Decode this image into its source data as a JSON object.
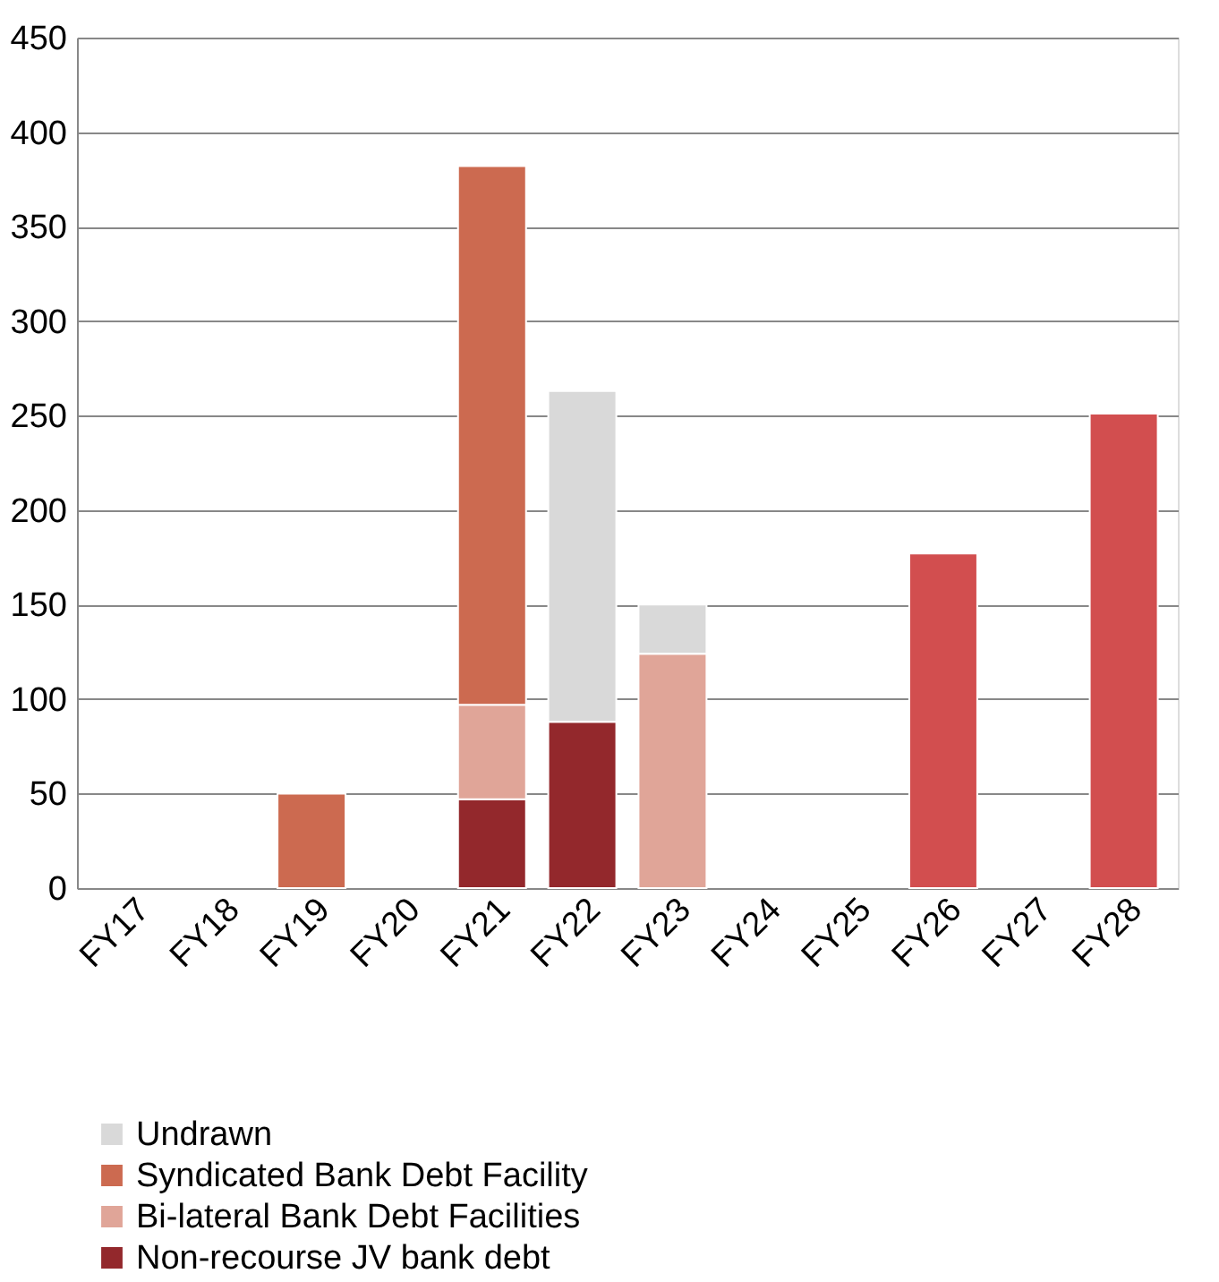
{
  "chart_data": {
    "type": "bar",
    "stacked": true,
    "categories": [
      "FY17",
      "FY18",
      "FY19",
      "FY20",
      "FY21",
      "FY22",
      "FY23",
      "FY24",
      "FY25",
      "FY26",
      "FY27",
      "FY28"
    ],
    "series": [
      {
        "name": "Non-recourse JV bank debt",
        "color": "#93282c",
        "values": [
          null,
          null,
          null,
          null,
          47,
          88,
          null,
          null,
          null,
          null,
          null,
          null
        ]
      },
      {
        "name": "Bi-lateral Bank Debt Facilities",
        "color": "#e0a598",
        "values": [
          null,
          null,
          null,
          null,
          50,
          null,
          124,
          null,
          null,
          null,
          null,
          null
        ]
      },
      {
        "name": "Syndicated Bank Debt Facility",
        "color": "#cc6a50",
        "values": [
          null,
          null,
          50,
          null,
          285,
          null,
          null,
          null,
          null,
          null,
          null,
          null
        ]
      },
      {
        "name": "Undrawn",
        "color": "#d9d9d9",
        "values": [
          null,
          null,
          null,
          null,
          null,
          175,
          26,
          null,
          null,
          null,
          null,
          null
        ]
      },
      {
        "color": "#d24e4f",
        "values": [
          null,
          null,
          null,
          null,
          null,
          null,
          null,
          null,
          null,
          177,
          null,
          251
        ]
      }
    ],
    "ylim": [
      0,
      450
    ],
    "yticks": [
      0,
      50,
      100,
      150,
      200,
      250,
      300,
      350,
      400,
      450
    ],
    "grid": "y",
    "legend": "bottom"
  }
}
